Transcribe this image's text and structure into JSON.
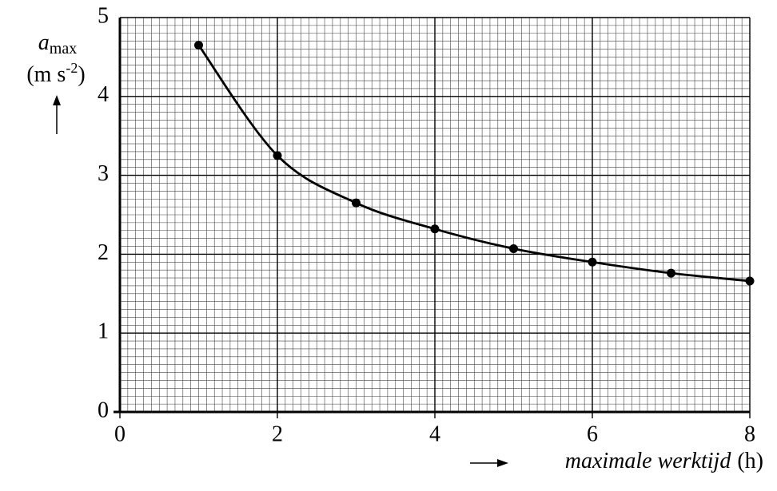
{
  "chart_data": {
    "type": "line",
    "ylabel_symbol": "a",
    "ylabel_subscript": "max",
    "ylabel_unit": [
      "(m s",
      "-2",
      ")"
    ],
    "xlabel": "maximale werktijd",
    "xlabel_unit": "(h)",
    "x": [
      1,
      2,
      3,
      4,
      5,
      6,
      7,
      8
    ],
    "series": [
      {
        "color": "#000000",
        "values": [
          4.65,
          3.25,
          2.65,
          2.32,
          2.07,
          1.9,
          1.76,
          1.66
        ]
      }
    ],
    "xlim": [
      0,
      8
    ],
    "xticks": [
      0,
      2,
      4,
      6,
      8
    ],
    "ylim": [
      0,
      5
    ],
    "yticks": [
      0,
      1,
      2,
      3,
      4,
      5
    ],
    "grid": true
  }
}
